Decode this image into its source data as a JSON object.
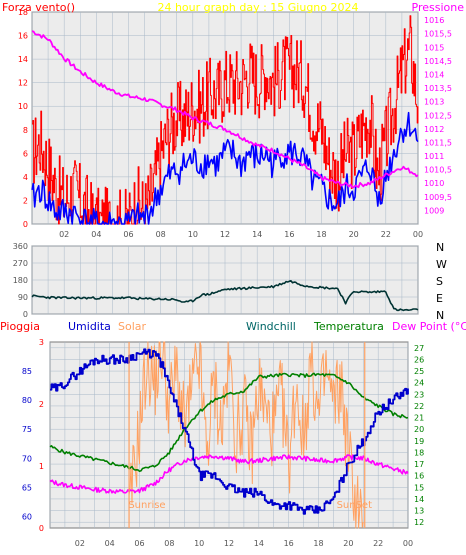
{
  "colors": {
    "background": "#ffffff",
    "plot_bg": "#ececec",
    "grid": "#a8b8c8",
    "wind": "#ff0000",
    "gust": "#0000ff",
    "pressure": "#ff00ff",
    "title": "#ffff00",
    "direction": "#003333",
    "rain": "#ff0000",
    "humidity": "#0000cc",
    "solar": "#ffa060",
    "windchill": "#006666",
    "temperature": "#008000",
    "dewpoint": "#ff00ff",
    "axis_label": "#555555"
  },
  "chart_data": [
    {
      "type": "line",
      "title": "24 hour graph day : 15 Giugno 2024",
      "left_label": "Forza vento()",
      "right_label": "Pressione",
      "x_ticks": [
        "02",
        "04",
        "06",
        "08",
        "10",
        "12",
        "14",
        "16",
        "18",
        "20",
        "22",
        "00"
      ],
      "x_range": [
        0,
        24
      ],
      "left_ylim": [
        0,
        18
      ],
      "left_y_ticks": [
        "0",
        "2",
        "4",
        "6",
        "8",
        "10",
        "12",
        "14",
        "16",
        "18"
      ],
      "right_ylim": [
        1008.5,
        1016.3
      ],
      "right_y_ticks": [
        "1009",
        "1009,5",
        "1010",
        "1010,5",
        "1011",
        "1011,5",
        "1012",
        "1012,5",
        "1013",
        "1013,5",
        "1014",
        "1014,5",
        "1015",
        "1015,5",
        "1016"
      ],
      "series": [
        {
          "name": "",
          "axis": "left",
          "style": "gust",
          "x": [
            0,
            0.5,
            1,
            1.5,
            2,
            2.5,
            3,
            3.5,
            4,
            4.5,
            5,
            5.5,
            6,
            6.5,
            7,
            7.5,
            8,
            8.5,
            9,
            9.5,
            10,
            10.5,
            11,
            11.5,
            12,
            12.5,
            13,
            13.5,
            14,
            14.5,
            15,
            15.5,
            16,
            16.5,
            17,
            17.5,
            18,
            18.5,
            19,
            19.5,
            20,
            20.5,
            21,
            21.5,
            22,
            22.5,
            23,
            23.5,
            24
          ],
          "y": [
            6,
            7,
            5,
            3,
            2,
            3,
            2,
            1,
            0,
            0,
            0,
            0,
            0,
            2,
            1,
            3,
            6,
            8,
            9,
            9,
            10,
            10,
            11,
            11,
            12,
            12,
            12,
            13,
            12,
            13,
            12,
            13,
            13,
            13,
            12,
            9,
            8,
            5,
            4,
            6,
            6,
            8,
            9,
            4,
            7,
            10,
            13,
            15,
            10
          ]
        },
        {
          "name": "",
          "axis": "left",
          "style": "wind",
          "x": [
            0,
            0.5,
            1,
            1.5,
            2,
            2.5,
            3,
            3.5,
            4,
            4.5,
            5,
            5.5,
            6,
            6.5,
            7,
            7.5,
            8,
            8.5,
            9,
            9.5,
            10,
            10.5,
            11,
            11.5,
            12,
            12.5,
            13,
            13.5,
            14,
            14.5,
            15,
            15.5,
            16,
            16.5,
            17,
            17.5,
            18,
            18.5,
            19,
            19.5,
            20,
            20.5,
            21,
            21.5,
            22,
            22.5,
            23,
            23.5,
            24
          ],
          "y": [
            2,
            3,
            2,
            1,
            1,
            1,
            0.5,
            0,
            0,
            0,
            0,
            0,
            0,
            0.5,
            0.5,
            1.5,
            3,
            4,
            4.5,
            5,
            5.5,
            5,
            5.5,
            5,
            6,
            6,
            5,
            6,
            5.5,
            6,
            5,
            6,
            6,
            6,
            5,
            3.5,
            3,
            2,
            1.5,
            3,
            3,
            4,
            5,
            2,
            4,
            6,
            8,
            8.5,
            7
          ]
        },
        {
          "name": "",
          "axis": "right",
          "style": "pressure",
          "x": [
            0,
            1,
            2,
            3,
            4,
            5,
            6,
            7,
            8,
            9,
            10,
            11,
            12,
            13,
            14,
            15,
            16,
            17,
            18,
            19,
            20,
            21,
            22,
            23,
            24
          ],
          "y": [
            1015.6,
            1015.3,
            1014.6,
            1014.1,
            1013.7,
            1013.4,
            1013.2,
            1013.1,
            1012.9,
            1012.7,
            1012.4,
            1012.2,
            1012.0,
            1011.7,
            1011.4,
            1011.2,
            1010.9,
            1010.6,
            1010.2,
            1010.0,
            1009.9,
            1010.0,
            1010.3,
            1010.6,
            1010.3
          ]
        }
      ]
    },
    {
      "type": "line",
      "title": "",
      "right_y_ticks": [
        "N",
        "E",
        "S",
        "W",
        "N"
      ],
      "left_y_ticks": [
        "0",
        "90",
        "180",
        "270",
        "360"
      ],
      "ylim": [
        0,
        360
      ],
      "x_ticks": [
        "02",
        "04",
        "06",
        "08",
        "10",
        "12",
        "14",
        "16",
        "18",
        "20",
        "22",
        "00"
      ],
      "x_range": [
        0,
        24
      ],
      "series": [
        {
          "name": "",
          "style": "direction",
          "x": [
            0,
            1,
            2,
            3,
            4,
            5,
            6,
            7,
            8,
            9,
            9.5,
            10,
            10.5,
            11,
            12,
            13,
            14,
            15,
            16,
            17,
            18,
            19,
            19.5,
            20,
            21,
            22,
            22.5,
            23,
            24
          ],
          "y": [
            95,
            88,
            85,
            85,
            85,
            85,
            85,
            80,
            80,
            75,
            60,
            70,
            100,
            105,
            130,
            135,
            140,
            145,
            175,
            150,
            140,
            135,
            60,
            120,
            115,
            120,
            25,
            20,
            22
          ]
        }
      ]
    },
    {
      "type": "line",
      "title": "",
      "legend": [
        "Pioggia",
        "Umidita",
        "Solar",
        "Windchill",
        "Temperatura",
        "Dew Point (°C)"
      ],
      "left_y_ticks": [
        "60",
        "65",
        "70",
        "75",
        "80",
        "85"
      ],
      "left_ylim": [
        58,
        90
      ],
      "rain_ticks": [
        "0",
        "1",
        "2",
        "3"
      ],
      "right_y_ticks": [
        "12",
        "13",
        "14",
        "15",
        "16",
        "17",
        "18",
        "19",
        "20",
        "21",
        "22",
        "23",
        "24",
        "25",
        "26",
        "27"
      ],
      "right_ylim": [
        11.5,
        27.5
      ],
      "x_ticks": [
        "02",
        "04",
        "06",
        "08",
        "10",
        "12",
        "14",
        "16",
        "18",
        "20",
        "22",
        "00"
      ],
      "x_range": [
        0,
        24
      ],
      "annotations": [
        "Sunrise",
        "SunSet"
      ],
      "series": [
        {
          "name": "Umidita",
          "axis": "left",
          "style": "humidity",
          "x": [
            0,
            0.5,
            1,
            2,
            3,
            4,
            5,
            6,
            7,
            7.5,
            8,
            9,
            10,
            11,
            12,
            13,
            14,
            15,
            16,
            17,
            18,
            19,
            20,
            21,
            22,
            23,
            24
          ],
          "y": [
            82,
            82,
            83,
            85,
            87,
            87,
            87,
            88,
            88,
            86,
            82,
            75,
            67,
            67,
            65,
            64,
            64,
            62,
            62,
            61,
            61,
            63,
            69,
            73,
            78,
            80,
            82
          ]
        },
        {
          "name": "Temperatura",
          "axis": "right",
          "style": "temperature",
          "x": [
            0,
            1,
            2,
            3,
            4,
            5,
            6,
            7,
            8,
            9,
            10,
            11,
            12,
            13,
            14,
            15,
            16,
            17,
            18,
            19,
            20,
            21,
            22,
            23,
            24
          ],
          "y": [
            18.5,
            18.0,
            17.7,
            17.4,
            17.1,
            16.8,
            16.5,
            16.8,
            18.0,
            20.0,
            21.5,
            22.5,
            23.0,
            23.3,
            24.5,
            24.6,
            24.7,
            24.6,
            24.7,
            24.6,
            24.0,
            22.7,
            22.0,
            21.3,
            21.0
          ]
        },
        {
          "name": "Dew Point (°C)",
          "axis": "right",
          "style": "dewpoint",
          "x": [
            0,
            1,
            2,
            3,
            4,
            5,
            6,
            7,
            8,
            9,
            10,
            11,
            12,
            13,
            14,
            15,
            16,
            17,
            18,
            19,
            20,
            21,
            22,
            23,
            24
          ],
          "y": [
            15.5,
            15.2,
            15.0,
            14.8,
            14.7,
            14.6,
            14.7,
            15.3,
            16.5,
            17.3,
            17.6,
            17.7,
            17.5,
            17.2,
            17.3,
            17.5,
            17.6,
            17.5,
            17.3,
            17.3,
            17.6,
            17.5,
            17.0,
            16.6,
            16.2
          ]
        },
        {
          "name": "Solar",
          "axis": "right",
          "style": "solar",
          "x": [
            5.3,
            5.5,
            6,
            6.5,
            7,
            7.5,
            8,
            8.5,
            9,
            9.5,
            10,
            10.5,
            11,
            11.5,
            12,
            12.5,
            13,
            13.5,
            14,
            14.5,
            15,
            15.5,
            16,
            16.5,
            17,
            17.5,
            18,
            18.5,
            19,
            19.5,
            20,
            20.5,
            21
          ],
          "y": [
            12,
            15,
            20,
            26,
            24,
            27,
            22,
            25,
            20,
            23,
            26,
            18,
            24,
            20,
            26,
            19,
            22,
            18,
            24,
            21,
            20,
            23,
            17,
            24,
            19,
            26,
            21,
            25,
            22,
            24,
            18,
            14,
            12
          ]
        }
      ]
    }
  ]
}
